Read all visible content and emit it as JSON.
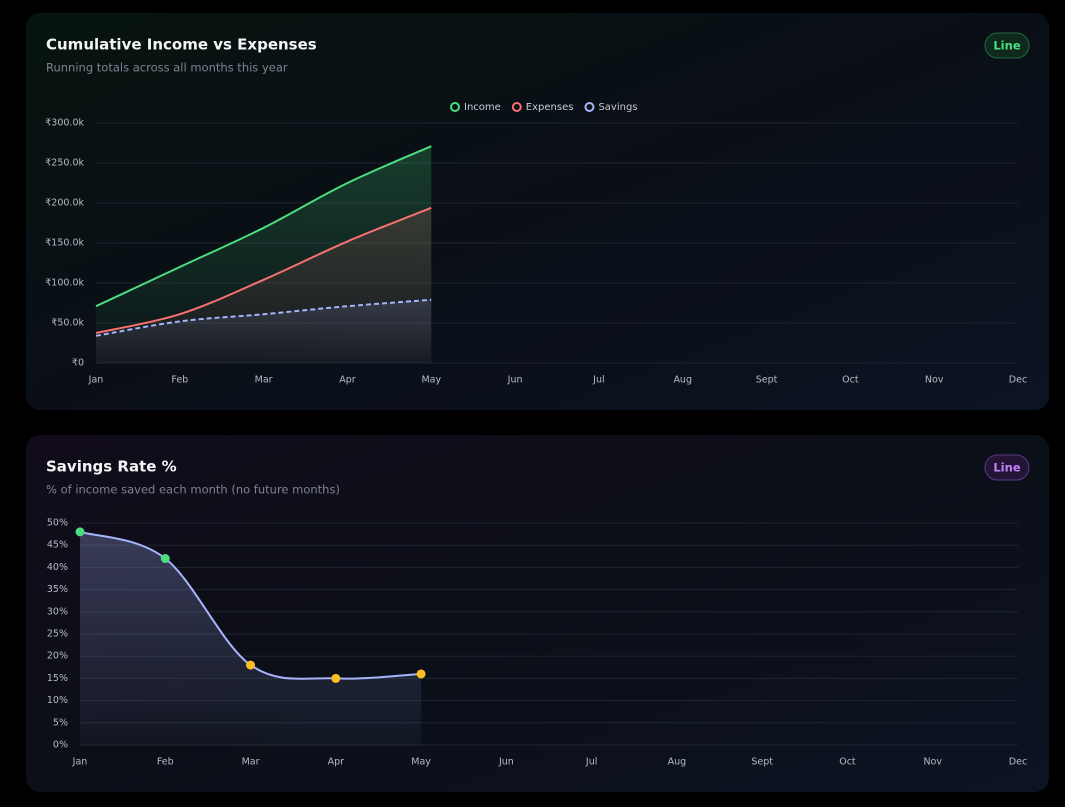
{
  "chart_data": [
    {
      "type": "line",
      "title": "Cumulative Income vs Expenses",
      "subtitle": "Running totals across all months this year",
      "badge": "Line",
      "categories": [
        "Jan",
        "Feb",
        "Mar",
        "Apr",
        "May",
        "Jun",
        "Jul",
        "Aug",
        "Sept",
        "Oct",
        "Nov",
        "Dec"
      ],
      "series": [
        {
          "name": "Income",
          "color": "#4ade80",
          "values": [
            71000,
            120000,
            169000,
            225000,
            271000,
            null,
            null,
            null,
            null,
            null,
            null,
            null
          ]
        },
        {
          "name": "Expenses",
          "color": "#f87171",
          "values": [
            37500,
            61000,
            104000,
            152000,
            194000,
            null,
            null,
            null,
            null,
            null,
            null,
            null
          ]
        },
        {
          "name": "Savings",
          "color": "#a5b4fc",
          "values": [
            34000,
            52000,
            61000,
            71000,
            79000,
            null,
            null,
            null,
            null,
            null,
            null,
            null
          ]
        }
      ],
      "ylim": [
        0,
        300000
      ],
      "yticks": [
        {
          "value": 0,
          "label": "₹0"
        },
        {
          "value": 50000,
          "label": "₹50.0k"
        },
        {
          "value": 100000,
          "label": "₹100.0k"
        },
        {
          "value": 150000,
          "label": "₹150.0k"
        },
        {
          "value": 200000,
          "label": "₹200.0k"
        },
        {
          "value": 250000,
          "label": "₹250.0k"
        },
        {
          "value": 300000,
          "label": "₹300.0k"
        }
      ],
      "grid": true,
      "legend": "top"
    },
    {
      "type": "line",
      "title": "Savings Rate %",
      "subtitle": "% of income saved each month (no future months)",
      "badge": "Line",
      "categories": [
        "Jan",
        "Feb",
        "Mar",
        "Apr",
        "May",
        "Jun",
        "Jul",
        "Aug",
        "Sept",
        "Oct",
        "Nov",
        "Dec"
      ],
      "values": [
        48,
        42,
        18,
        15,
        16,
        null,
        null,
        null,
        null,
        null,
        null,
        null
      ],
      "color": "#a5b4fc",
      "point_colors": [
        "#4ade80",
        "#4ade80",
        "#fbbf24",
        "#fbbf24",
        "#fbbf24",
        null,
        null,
        null,
        null,
        null,
        null,
        null
      ],
      "ylim": [
        0,
        50
      ],
      "yticks": [
        {
          "value": 0,
          "label": "0%"
        },
        {
          "value": 5,
          "label": "5%"
        },
        {
          "value": 10,
          "label": "10%"
        },
        {
          "value": 15,
          "label": "15%"
        },
        {
          "value": 20,
          "label": "20%"
        },
        {
          "value": 25,
          "label": "25%"
        },
        {
          "value": 30,
          "label": "30%"
        },
        {
          "value": 35,
          "label": "35%"
        },
        {
          "value": 40,
          "label": "40%"
        },
        {
          "value": 45,
          "label": "45%"
        },
        {
          "value": 50,
          "label": "50%"
        }
      ],
      "grid": true
    }
  ]
}
